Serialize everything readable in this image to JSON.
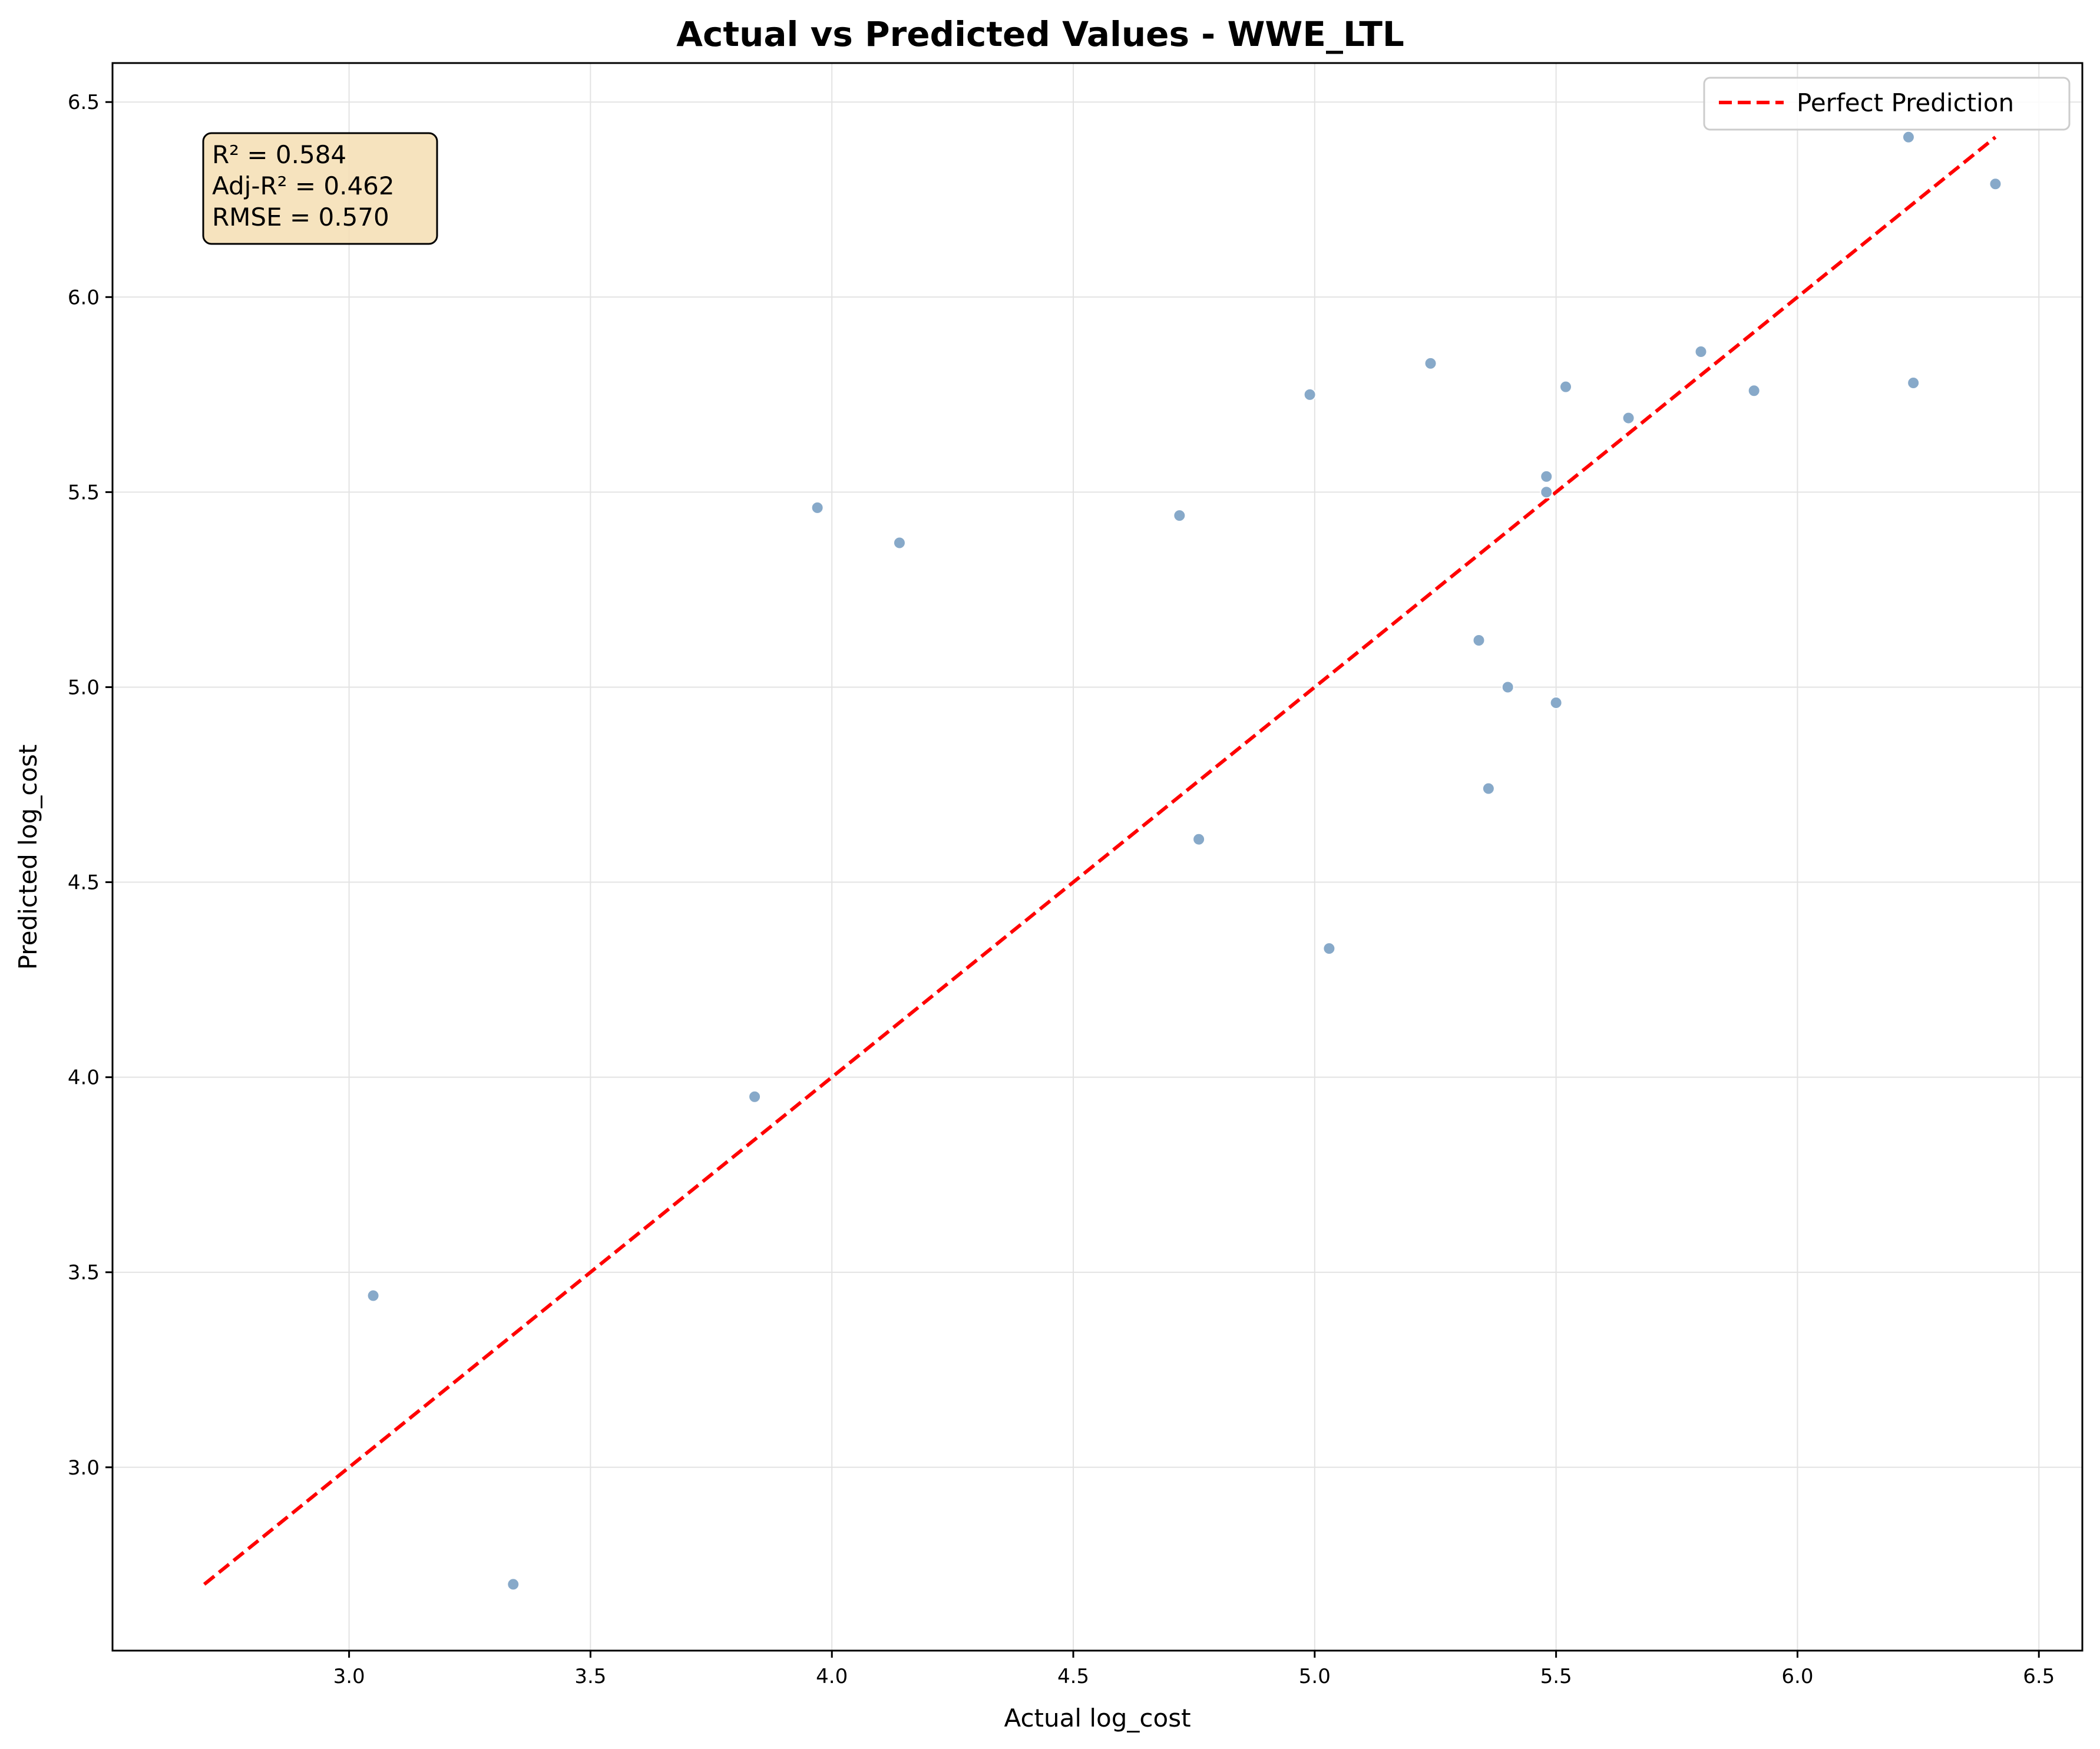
{
  "chart_data": {
    "type": "scatter",
    "title": "Actual vs Predicted Values - WWE_LTL",
    "xlabel": "Actual log_cost",
    "ylabel": "Predicted log_cost",
    "xlim": [
      2.51,
      6.59
    ],
    "ylim": [
      2.53,
      6.6
    ],
    "x_ticks": [
      "3.0",
      "3.5",
      "4.0",
      "4.5",
      "5.0",
      "5.5",
      "6.0",
      "6.5"
    ],
    "y_ticks": [
      "3.0",
      "3.5",
      "4.0",
      "4.5",
      "5.0",
      "5.5",
      "6.0",
      "6.5"
    ],
    "grid": true,
    "legend": {
      "position": "top-right",
      "entries": [
        "Perfect Prediction"
      ]
    },
    "stats_box": [
      "R² = 0.584",
      "Adj-R² = 0.462",
      "RMSE = 0.570"
    ],
    "reference_line": {
      "name": "Perfect Prediction",
      "from": [
        2.7,
        2.7
      ],
      "to": [
        6.41,
        6.41
      ],
      "color": "#ff0000",
      "style": "dashed"
    },
    "points_color": "#87a9c9",
    "points": [
      {
        "x": 3.05,
        "y": 3.44
      },
      {
        "x": 3.34,
        "y": 2.7
      },
      {
        "x": 3.84,
        "y": 3.95
      },
      {
        "x": 3.97,
        "y": 5.46
      },
      {
        "x": 4.14,
        "y": 5.37
      },
      {
        "x": 4.72,
        "y": 5.44
      },
      {
        "x": 4.76,
        "y": 4.61
      },
      {
        "x": 4.99,
        "y": 5.75
      },
      {
        "x": 5.03,
        "y": 4.33
      },
      {
        "x": 5.24,
        "y": 5.83
      },
      {
        "x": 5.34,
        "y": 5.12
      },
      {
        "x": 5.36,
        "y": 4.74
      },
      {
        "x": 5.4,
        "y": 5.0
      },
      {
        "x": 5.48,
        "y": 5.54
      },
      {
        "x": 5.48,
        "y": 5.5
      },
      {
        "x": 5.5,
        "y": 4.96
      },
      {
        "x": 5.52,
        "y": 5.77
      },
      {
        "x": 5.65,
        "y": 5.69
      },
      {
        "x": 5.8,
        "y": 5.86
      },
      {
        "x": 5.91,
        "y": 5.76
      },
      {
        "x": 6.23,
        "y": 6.41
      },
      {
        "x": 6.24,
        "y": 5.78
      },
      {
        "x": 6.41,
        "y": 6.29
      }
    ]
  }
}
